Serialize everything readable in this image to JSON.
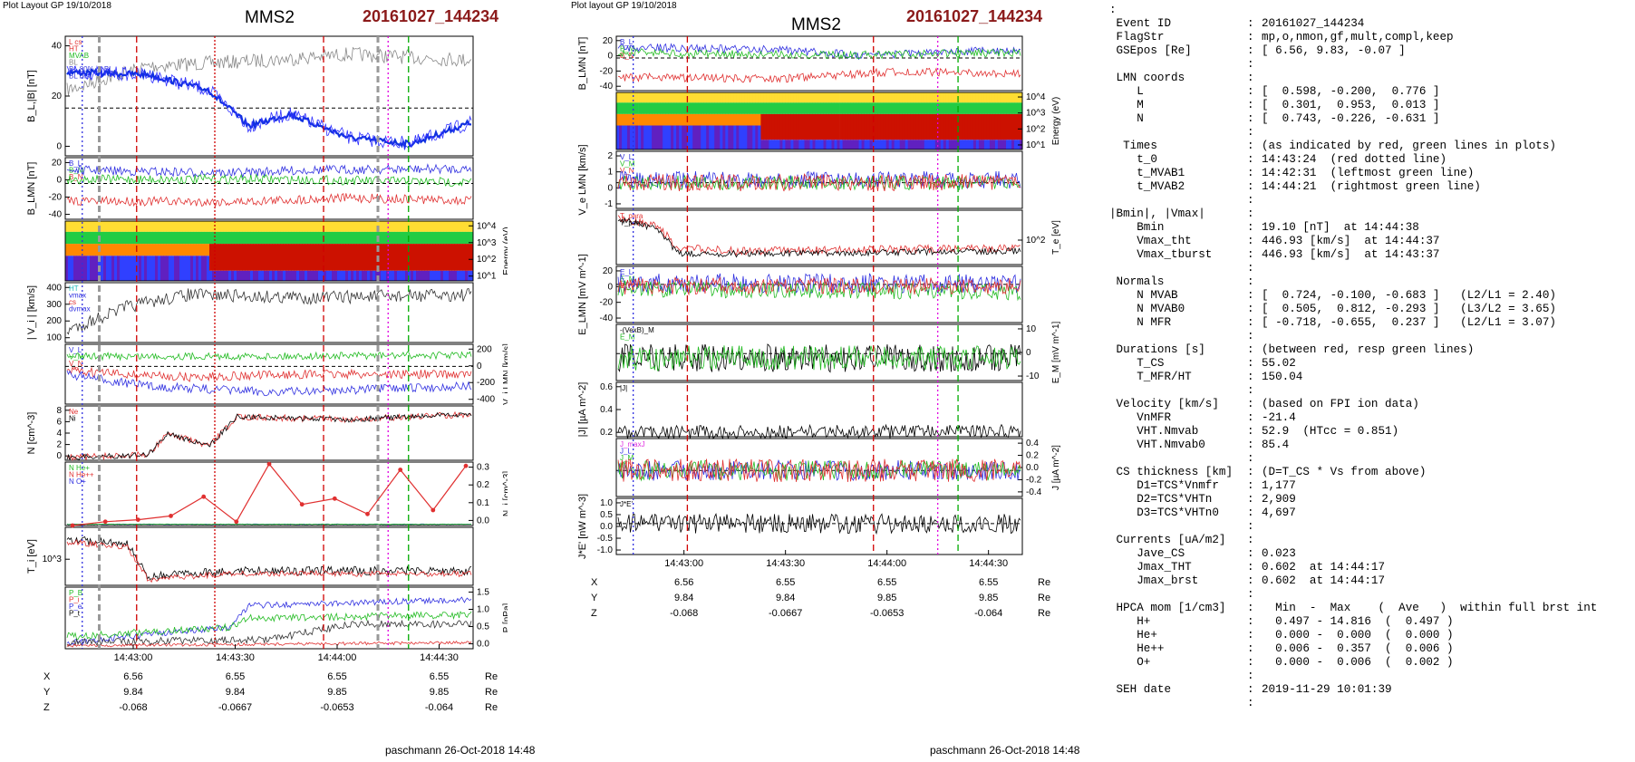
{
  "left_plot": {
    "layout_label": "Plot Layout GP 19/10/2018",
    "spacecraft": "MMS2",
    "event": "20161027_144234",
    "footer": "paschmann 26-Oct-2018 14:48",
    "panels": [
      {
        "id": "B",
        "ylabel": "B_L,|B| [nT]",
        "yticks": [
          "40",
          "20",
          "0"
        ],
        "right_label": "",
        "right_ticks": [],
        "legend": [
          {
            "text": "L cs",
            "color": "#e03030"
          },
          {
            "text": "HT",
            "color": "#e03030"
          },
          {
            "text": "MVAB",
            "color": "#22bb22"
          },
          {
            "text": "BL",
            "color": "#888888"
          },
          {
            "text": "BL 80% of BL",
            "color": "#3030e0"
          },
          {
            "text": "BL brst",
            "color": "#3030e0"
          }
        ]
      },
      {
        "id": "BLMN",
        "ylabel": "B_LMN [nT]",
        "yticks": [
          "20",
          "0",
          "-20",
          "-40"
        ],
        "right_label": "",
        "right_ticks": [],
        "legend": [
          {
            "text": "B_L",
            "color": "#3030e0"
          },
          {
            "text": "B_M",
            "color": "#22bb22"
          },
          {
            "text": "B_N",
            "color": "#e03030"
          }
        ]
      },
      {
        "id": "SPEC",
        "ylabel": "",
        "yticks": [],
        "right_label": "Energy (eV)",
        "right_ticks": [
          "10^4",
          "10^3",
          "10^2",
          "10^1"
        ],
        "legend": []
      },
      {
        "id": "Vi",
        "ylabel": "| V_i | [km/s]",
        "yticks": [
          "400",
          "300",
          "200",
          "100"
        ],
        "right_label": "",
        "right_ticks": [],
        "legend": [
          {
            "text": "HT",
            "color": "#22bbbb"
          },
          {
            "text": "vmax",
            "color": "#3030e0"
          },
          {
            "text": "cs",
            "color": "#e03030"
          },
          {
            "text": "dvmax",
            "color": "#3030e0"
          }
        ]
      },
      {
        "id": "ViLMN",
        "ylabel": "",
        "yticks": [],
        "right_label": "V_i LMN [km/s]",
        "right_ticks": [
          "200",
          "0",
          "-200",
          "-400"
        ],
        "legend": [
          {
            "text": "V_L",
            "color": "#3030e0"
          },
          {
            "text": "V_M",
            "color": "#22bb22"
          },
          {
            "text": "V_N",
            "color": "#e03030"
          }
        ]
      },
      {
        "id": "N",
        "ylabel": "N [cm^-3]",
        "yticks": [
          "8",
          "6",
          "4",
          "2",
          "0"
        ],
        "right_label": "",
        "right_ticks": [],
        "legend": [
          {
            "text": "Ne",
            "color": "#e03030"
          },
          {
            "text": "Ni",
            "color": "#000000"
          }
        ]
      },
      {
        "id": "Ni",
        "ylabel": "",
        "yticks": [],
        "right_label": "N_i [cm^-3]",
        "right_ticks": [
          "0.3",
          "0.2",
          "0.1",
          "0.0"
        ],
        "legend": [
          {
            "text": "N He+",
            "color": "#22bb22"
          },
          {
            "text": "N He++",
            "color": "#e03030"
          },
          {
            "text": "N O+",
            "color": "#3030e0"
          }
        ]
      },
      {
        "id": "Ti",
        "ylabel": "T_i [eV]",
        "yticks": [
          "10^3"
        ],
        "right_label": "",
        "right_ticks": [],
        "legend": []
      },
      {
        "id": "P",
        "ylabel": "",
        "yticks": [],
        "right_label": "P [nPa]",
        "right_ticks": [
          "1.5",
          "1.0",
          "0.5",
          "0.0"
        ],
        "legend": [
          {
            "text": "P_B",
            "color": "#22bb22"
          },
          {
            "text": "P_i",
            "color": "#e03030"
          },
          {
            "text": "P_e",
            "color": "#3030e0"
          },
          {
            "text": "P_t",
            "color": "#000000"
          }
        ]
      }
    ]
  },
  "right_plot": {
    "layout_label": "Plot layout GP 19/10/2018",
    "spacecraft": "MMS2",
    "event": "20161027_144234",
    "footer": "paschmann 26-Oct-2018 14:48",
    "panels": [
      {
        "id": "B",
        "ylabel": "B_LMN [nT]",
        "yticks": [
          "20",
          "0",
          "-20",
          "-40"
        ],
        "right_label": "",
        "right_ticks": [],
        "legend": [
          {
            "text": "B_L",
            "color": "#3030e0"
          },
          {
            "text": "B_M",
            "color": "#22bb22"
          },
          {
            "text": "B_N",
            "color": "#e03030"
          }
        ]
      },
      {
        "id": "SPEC",
        "ylabel": "",
        "yticks": [],
        "right_label": "Energy (eV)",
        "right_ticks": [
          "10^4",
          "10^3",
          "10^2",
          "10^1"
        ],
        "legend": []
      },
      {
        "id": "Ve",
        "ylabel": "V_e LMN [km/s]",
        "yticks": [
          "2",
          "1",
          "0",
          "-1"
        ],
        "right_label": "",
        "right_ticks": [],
        "legend": [
          {
            "text": "V_L",
            "color": "#3030e0"
          },
          {
            "text": "V_M",
            "color": "#22bb22"
          },
          {
            "text": "V_N",
            "color": "#e03030"
          }
        ]
      },
      {
        "id": "Te",
        "ylabel": "",
        "yticks": [],
        "right_label": "T_e [eV]",
        "right_ticks": [
          "10^2"
        ],
        "legend": [
          {
            "text": "T_para",
            "color": "#e03030"
          },
          {
            "text": "T_perp",
            "color": "#000000"
          }
        ]
      },
      {
        "id": "E",
        "ylabel": "E_LMN [mV m^-1]",
        "yticks": [
          "20",
          "0",
          "-20",
          "-40"
        ],
        "right_label": "",
        "right_ticks": [],
        "legend": [
          {
            "text": "E_L",
            "color": "#3030e0"
          },
          {
            "text": "E_M",
            "color": "#22bb22"
          },
          {
            "text": "E_N",
            "color": "#e03030"
          }
        ]
      },
      {
        "id": "EM",
        "ylabel": "",
        "yticks": [],
        "right_label": "E_M [mV m^-1]",
        "right_ticks": [
          "10",
          "0",
          "-10"
        ],
        "legend": [
          {
            "text": "-(VexB)_M",
            "color": "#000000"
          },
          {
            "text": "E_M",
            "color": "#22bb22"
          }
        ]
      },
      {
        "id": "J",
        "ylabel": "|J| [µA m^-2]",
        "yticks": [
          "0.6",
          "0.4",
          "0.2"
        ],
        "right_label": "",
        "right_ticks": [],
        "legend": [
          {
            "text": "|J|",
            "color": "#000000"
          }
        ]
      },
      {
        "id": "JLMN",
        "ylabel": "",
        "yticks": [],
        "right_label": "J [µA m^-2]",
        "right_ticks": [
          "0.4",
          "0.2",
          "0.0",
          "-0.2",
          "-0.4"
        ],
        "legend": [
          {
            "text": "J_maxJ",
            "color": "#e030e0"
          },
          {
            "text": "J_L",
            "color": "#3030e0"
          },
          {
            "text": "J_M",
            "color": "#22bb22"
          },
          {
            "text": "J_N",
            "color": "#e03030"
          }
        ]
      },
      {
        "id": "JE",
        "ylabel": "J*E' [nW m^-3]",
        "yticks": [
          "1.0",
          "0.5",
          "0.0",
          "-0.5",
          "-1.0"
        ],
        "right_label": "",
        "right_ticks": [],
        "legend": [
          {
            "text": "J*E'",
            "color": "#000000"
          }
        ]
      }
    ]
  },
  "time_ticks": [
    "14:43:00",
    "14:43:30",
    "14:44:00",
    "14:44:30"
  ],
  "ephemeris": {
    "rows": [
      {
        "label": "X",
        "values": [
          "6.56",
          "6.55",
          "6.55",
          "6.55"
        ],
        "unit": "Re"
      },
      {
        "label": "Y",
        "values": [
          "9.84",
          "9.84",
          "9.85",
          "9.85"
        ],
        "unit": "Re"
      },
      {
        "label": "Z",
        "values": [
          "-0.068",
          "-0.0667",
          "-0.0653",
          "-0.064"
        ],
        "unit": "Re"
      }
    ]
  },
  "colors": {
    "spec_high": "#cc1100",
    "spec_mid": "#22cc44",
    "spec_low": "#6020c0",
    "dash_red": "#d00000",
    "dash_magenta": "#e000e0",
    "dash_green": "#00aa00",
    "dash_gray": "#999999"
  },
  "info_text": [
    {
      "k": ":",
      "s": "",
      "v": ""
    },
    {
      "k": " Event ID",
      "s": ":",
      "v": "20161027_144234"
    },
    {
      "k": " FlagStr",
      "s": ":",
      "v": "mp,o,nmon,gf,mult,compl,keep"
    },
    {
      "k": " GSEpos [Re]",
      "s": ":",
      "v": "[ 6.56, 9.83, -0.07 ]"
    },
    {
      "k": "",
      "s": ":",
      "v": ""
    },
    {
      "k": " LMN coords",
      "s": ":",
      "v": ""
    },
    {
      "k": "    L",
      "s": ":",
      "v": "[  0.598, -0.200,  0.776 ]"
    },
    {
      "k": "    M",
      "s": ":",
      "v": "[  0.301,  0.953,  0.013 ]"
    },
    {
      "k": "    N",
      "s": ":",
      "v": "[  0.743, -0.226, -0.631 ]"
    },
    {
      "k": "",
      "s": ":",
      "v": ""
    },
    {
      "k": "  Times",
      "s": ":",
      "v": "(as indicated by red, green lines in plots)"
    },
    {
      "k": "    t_0",
      "s": ":",
      "v": "14:43:24  (red dotted line)"
    },
    {
      "k": "    t_MVAB1",
      "s": ":",
      "v": "14:42:31  (leftmost green line)"
    },
    {
      "k": "    t_MVAB2",
      "s": ":",
      "v": "14:44:21  (rightmost green line)"
    },
    {
      "k": "",
      "s": ":",
      "v": ""
    },
    {
      "k": "|Bmin|, |Vmax|",
      "s": ":",
      "v": ""
    },
    {
      "k": "    Bmin",
      "s": ":",
      "v": "19.10 [nT]  at 14:44:38"
    },
    {
      "k": "    Vmax_tht",
      "s": ":",
      "v": "446.93 [km/s]  at 14:44:37"
    },
    {
      "k": "    Vmax_tburst",
      "s": ":",
      "v": "446.93 [km/s]  at 14:43:37"
    },
    {
      "k": "",
      "s": ":",
      "v": ""
    },
    {
      "k": " Normals",
      "s": ":",
      "v": ""
    },
    {
      "k": "    N MVAB",
      "s": ":",
      "v": "[  0.724, -0.100, -0.683 ]   (L2/L1 = 2.40)"
    },
    {
      "k": "    N MVAB0",
      "s": ":",
      "v": "[  0.505,  0.812, -0.293 ]   (L3/L2 = 3.65)"
    },
    {
      "k": "    N MFR",
      "s": ":",
      "v": "[ -0.718, -0.655,  0.237 ]   (L2/L1 = 3.07)"
    },
    {
      "k": "",
      "s": ":",
      "v": ""
    },
    {
      "k": " Durations [s]",
      "s": ":",
      "v": "(between red, resp green lines)"
    },
    {
      "k": "    T_CS",
      "s": ":",
      "v": "55.02"
    },
    {
      "k": "    T_MFR/HT",
      "s": ":",
      "v": "150.04"
    },
    {
      "k": "",
      "s": ":",
      "v": ""
    },
    {
      "k": " Velocity [km/s]",
      "s": ":",
      "v": "(based on FPI ion data)"
    },
    {
      "k": "    VnMFR",
      "s": ":",
      "v": "-21.4"
    },
    {
      "k": "    VHT.Nmvab",
      "s": ":",
      "v": "52.9  (HTcc = 0.851)"
    },
    {
      "k": "    VHT.Nmvab0",
      "s": ":",
      "v": "85.4"
    },
    {
      "k": "",
      "s": ":",
      "v": ""
    },
    {
      "k": " CS thickness [km]",
      "s": ":",
      "v": "(D=T_CS * Vs from above)"
    },
    {
      "k": "    D1=TCS*Vnmfr",
      "s": ":",
      "v": "1,177"
    },
    {
      "k": "    D2=TCS*VHTn",
      "s": ":",
      "v": "2,909"
    },
    {
      "k": "    D3=TCS*VHTn0",
      "s": ":",
      "v": "4,697"
    },
    {
      "k": "",
      "s": ":",
      "v": ""
    },
    {
      "k": " Currents [uA/m2]",
      "s": ":",
      "v": ""
    },
    {
      "k": "    Jave_CS",
      "s": ":",
      "v": "0.023"
    },
    {
      "k": "    Jmax_THT",
      "s": ":",
      "v": "0.602  at 14:44:17"
    },
    {
      "k": "    Jmax_brst",
      "s": ":",
      "v": "0.602  at 14:44:17"
    },
    {
      "k": "",
      "s": ":",
      "v": ""
    },
    {
      "k": " HPCA mom [1/cm3]",
      "s": ":",
      "v": "  Min  -  Max    (  Ave   )  within full brst int"
    },
    {
      "k": "    H+",
      "s": ":",
      "v": "  0.497 - 14.816  (  0.497 )"
    },
    {
      "k": "    He+",
      "s": ":",
      "v": "  0.000 -  0.000  (  0.000 )"
    },
    {
      "k": "    He++",
      "s": ":",
      "v": "  0.006 -  0.357  (  0.006 )"
    },
    {
      "k": "    O+",
      "s": ":",
      "v": "  0.000 -  0.006  (  0.002 )"
    },
    {
      "k": "",
      "s": ":",
      "v": ""
    },
    {
      "k": " SEH date",
      "s": ":",
      "v": "2019-11-29 10:01:39"
    },
    {
      "k": "",
      "s": ":",
      "v": ""
    }
  ],
  "chart_data": [
    {
      "type": "line",
      "title": "MMS2 20161027_144234",
      "x_range": [
        "14:42:40",
        "14:44:40"
      ],
      "xticks": [
        "14:43:00",
        "14:43:30",
        "14:44:00",
        "14:44:30"
      ],
      "markers": [
        {
          "time": "14:42:46",
          "color": "blue"
        },
        {
          "time": "14:43:01",
          "color": "red"
        },
        {
          "time": "14:43:24",
          "color": "red"
        },
        {
          "time": "14:43:56",
          "color": "red"
        },
        {
          "time": "14:44:15",
          "color": "magenta"
        },
        {
          "time": "14:44:21",
          "color": "green"
        }
      ],
      "series": [
        {
          "name": "N He++",
          "values": [
            0.0,
            0.02,
            0.03,
            0.05,
            0.15,
            0.02,
            0.32,
            0.11,
            0.14,
            0.06,
            0.29,
            0.08,
            0.31
          ]
        },
        {
          "name": "N He+",
          "values": [
            0.0,
            0.0,
            0.0,
            0.0,
            0.0,
            0.0,
            0.0,
            0.0,
            0.0,
            0.0,
            0.0,
            0.0,
            0.0
          ]
        },
        {
          "name": "N O+",
          "values": [
            0.0,
            0.0,
            0.0,
            0.0,
            0.0,
            0.0,
            0.0,
            0.0,
            0.0,
            0.0,
            0.0,
            0.0,
            0.0
          ]
        }
      ]
    },
    {
      "type": "line",
      "title": "MMS2 20161027_144234",
      "x_range": [
        "14:42:40",
        "14:44:40"
      ],
      "xticks": [
        "14:43:00",
        "14:43:30",
        "14:44:00",
        "14:44:30"
      ],
      "markers": [
        {
          "time": "14:42:46",
          "color": "blue"
        },
        {
          "time": "14:43:01",
          "color": "red"
        },
        {
          "time": "14:43:56",
          "color": "red"
        },
        {
          "time": "14:44:15",
          "color": "magenta"
        },
        {
          "time": "14:44:21",
          "color": "green"
        }
      ]
    }
  ]
}
